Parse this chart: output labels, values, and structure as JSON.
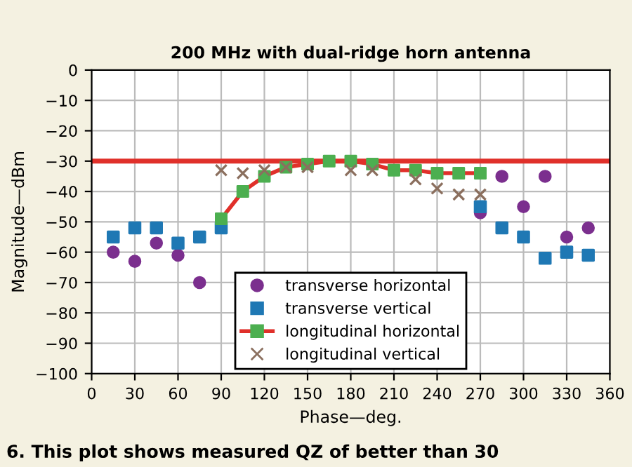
{
  "chart_data": {
    "type": "scatter",
    "title": "200 MHz with dual-ridge horn antenna",
    "xlabel": "Phase—deg.",
    "ylabel": "Magnitude—dBm",
    "xlim": [
      0,
      360
    ],
    "xticks": [
      0,
      30,
      60,
      90,
      120,
      150,
      180,
      210,
      240,
      270,
      300,
      330,
      360
    ],
    "ylim": [
      -100,
      0
    ],
    "yticks": [
      0,
      -10,
      -20,
      -30,
      -40,
      -50,
      -60,
      -70,
      -80,
      -90,
      -100
    ],
    "grid": true,
    "legend": "bottom",
    "series": [
      {
        "name": "transverse horizontal",
        "color": "#7b2f8e",
        "marker": "circle",
        "x": [
          15,
          30,
          45,
          60,
          75,
          270,
          285,
          300,
          315,
          330,
          345
        ],
        "values": [
          -60,
          -63,
          -57,
          -61,
          -70,
          -47,
          -35,
          -45,
          -35,
          -55,
          -52
        ]
      },
      {
        "name": "transverse vertical",
        "color": "#1f78b4",
        "marker": "square",
        "x": [
          15,
          30,
          45,
          60,
          75,
          90,
          270,
          285,
          300,
          315,
          330,
          345
        ],
        "values": [
          -55,
          -52,
          -52,
          -57,
          -55,
          -52,
          -45,
          -52,
          -55,
          -62,
          -60,
          -61
        ]
      },
      {
        "name": "longitudinal horizontal",
        "type": "line",
        "color": "#e0302a",
        "colors": [
          "#4caf50",
          "#4caf50",
          "#4caf50",
          "#4caf50",
          "#4caf50",
          "#4caf50",
          "#4caf50",
          "#4caf50",
          "#4caf50",
          "#4caf50",
          "#4caf50",
          "#4caf50",
          "#4caf50"
        ],
        "marker": "square",
        "x": [
          90,
          105,
          120,
          135,
          150,
          165,
          180,
          195,
          210,
          225,
          240,
          255,
          270
        ],
        "values": [
          -49,
          -40,
          -35,
          -32,
          -31,
          -30,
          -30,
          -31,
          -33,
          -33,
          -34,
          -34,
          -34
        ]
      },
      {
        "name": "longitudinal vertical",
        "color": "#8b6f5e",
        "marker": "cross",
        "x": [
          90,
          105,
          120,
          135,
          150,
          180,
          195,
          225,
          240,
          255,
          270
        ],
        "values": [
          -33,
          -34,
          -33,
          -32,
          -32,
          -33,
          -33,
          -36,
          -39,
          -41,
          -41
        ]
      }
    ],
    "ref_lines": [
      {
        "axis": "y",
        "value": -30,
        "color": "#e0302a"
      }
    ],
    "annotations": [
      "6. This plot shows measured QZ of better than 30"
    ]
  }
}
